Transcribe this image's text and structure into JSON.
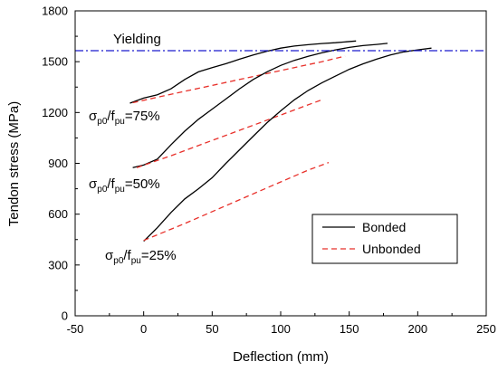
{
  "chart_data": {
    "type": "line",
    "xlabel": "Deflection (mm)",
    "ylabel": "Tendon stress (MPa)",
    "xlim": [
      -50,
      250
    ],
    "ylim": [
      0,
      1800
    ],
    "xticks": [
      -50,
      0,
      50,
      100,
      150,
      200,
      250
    ],
    "yticks": [
      0,
      300,
      600,
      900,
      1200,
      1500,
      1800
    ],
    "grid": false,
    "legend": {
      "position": "lower-right",
      "entries": [
        {
          "name": "Bonded",
          "color": "#000000"
        },
        {
          "name": "Unbonded",
          "color": "#e8302a"
        }
      ]
    },
    "yielding": {
      "label": "Yielding",
      "y": 1565,
      "color": "#1a1acd"
    },
    "annotations": [
      {
        "symbol": "σ",
        "sub1": "p0",
        "mid": "/f",
        "sub2": "pu",
        "value": "=75%"
      },
      {
        "symbol": "σ",
        "sub1": "p0",
        "mid": "/f",
        "sub2": "pu",
        "value": "=50%"
      },
      {
        "symbol": "σ",
        "sub1": "p0",
        "mid": "/f",
        "sub2": "pu",
        "value": "=25%"
      }
    ],
    "series": [
      {
        "name": "Bonded",
        "legend_index": 0,
        "annotation_index": 0,
        "points": [
          [
            -10,
            1255
          ],
          [
            0,
            1285
          ],
          [
            10,
            1305
          ],
          [
            20,
            1340
          ],
          [
            30,
            1395
          ],
          [
            40,
            1440
          ],
          [
            50,
            1465
          ],
          [
            60,
            1488
          ],
          [
            70,
            1515
          ],
          [
            80,
            1540
          ],
          [
            90,
            1562
          ],
          [
            100,
            1580
          ],
          [
            110,
            1592
          ],
          [
            120,
            1600
          ],
          [
            130,
            1607
          ],
          [
            140,
            1612
          ],
          [
            155,
            1622
          ]
        ]
      },
      {
        "name": "Unbonded",
        "legend_index": 1,
        "annotation_index": 0,
        "points": [
          [
            -8,
            1258
          ],
          [
            10,
            1290
          ],
          [
            30,
            1325
          ],
          [
            50,
            1360
          ],
          [
            70,
            1395
          ],
          [
            90,
            1430
          ],
          [
            110,
            1465
          ],
          [
            130,
            1500
          ],
          [
            147,
            1533
          ]
        ]
      },
      {
        "name": "Bonded",
        "legend_index": 0,
        "annotation_index": 1,
        "points": [
          [
            -8,
            875
          ],
          [
            0,
            890
          ],
          [
            10,
            925
          ],
          [
            20,
            1010
          ],
          [
            30,
            1090
          ],
          [
            40,
            1160
          ],
          [
            50,
            1220
          ],
          [
            60,
            1280
          ],
          [
            70,
            1340
          ],
          [
            80,
            1395
          ],
          [
            90,
            1440
          ],
          [
            100,
            1478
          ],
          [
            110,
            1508
          ],
          [
            120,
            1532
          ],
          [
            130,
            1552
          ],
          [
            140,
            1570
          ],
          [
            150,
            1584
          ],
          [
            160,
            1595
          ],
          [
            170,
            1602
          ],
          [
            178,
            1608
          ]
        ]
      },
      {
        "name": "Unbonded",
        "legend_index": 1,
        "annotation_index": 1,
        "points": [
          [
            -5,
            875
          ],
          [
            20,
            945
          ],
          [
            50,
            1035
          ],
          [
            80,
            1125
          ],
          [
            110,
            1215
          ],
          [
            130,
            1275
          ]
        ]
      },
      {
        "name": "Bonded",
        "legend_index": 0,
        "annotation_index": 2,
        "points": [
          [
            0,
            440
          ],
          [
            10,
            520
          ],
          [
            20,
            610
          ],
          [
            30,
            690
          ],
          [
            40,
            750
          ],
          [
            50,
            815
          ],
          [
            60,
            900
          ],
          [
            70,
            980
          ],
          [
            80,
            1060
          ],
          [
            90,
            1140
          ],
          [
            100,
            1210
          ],
          [
            110,
            1275
          ],
          [
            120,
            1330
          ],
          [
            130,
            1375
          ],
          [
            140,
            1415
          ],
          [
            150,
            1455
          ],
          [
            160,
            1487
          ],
          [
            170,
            1515
          ],
          [
            180,
            1540
          ],
          [
            190,
            1558
          ],
          [
            200,
            1570
          ],
          [
            210,
            1580
          ]
        ]
      },
      {
        "name": "Unbonded",
        "legend_index": 1,
        "annotation_index": 2,
        "points": [
          [
            0,
            445
          ],
          [
            30,
            545
          ],
          [
            60,
            650
          ],
          [
            90,
            755
          ],
          [
            120,
            860
          ],
          [
            135,
            905
          ]
        ]
      }
    ]
  }
}
